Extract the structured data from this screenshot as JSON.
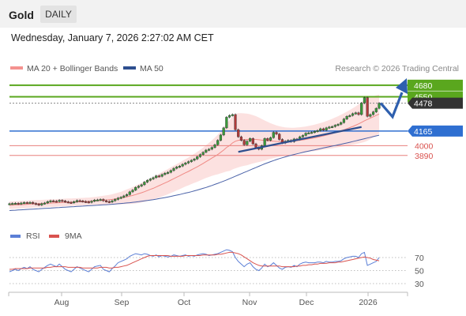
{
  "header": {
    "symbol": "Gold",
    "timeframe": "DAILY"
  },
  "timestamp": "Wednesday, January 7, 2026 2:27:02 AM CET",
  "legend": {
    "ma20": {
      "label": "MA 20 + Bollinger Bands",
      "color": "#f4928f"
    },
    "ma50": {
      "label": "MA 50",
      "color": "#2e4f8f"
    }
  },
  "copyright": "Research © 2026 Trading Central",
  "colors": {
    "resistance": "#5aa71e",
    "pivot": "#2f6fd1",
    "support": "#d9534f",
    "price_bg": "#333333",
    "candle_up": "#3a9a3a",
    "candle_down": "#b03a3a"
  },
  "chart_data": {
    "type": "candlestick",
    "x_ticks": [
      "Aug",
      "Sep",
      "Oct",
      "Nov",
      "Dec",
      "2026"
    ],
    "ylim": [
      3150,
      4750
    ],
    "levels": [
      {
        "value": 4680,
        "label": "4680",
        "kind": "resistance"
      },
      {
        "value": 4550,
        "label": "4550",
        "kind": "resistance"
      },
      {
        "value": 4478,
        "label": "4478",
        "kind": "price"
      },
      {
        "value": 4165,
        "label": "4165",
        "kind": "pivot"
      },
      {
        "value": 4000,
        "label": "4000",
        "kind": "support"
      },
      {
        "value": 3890,
        "label": "3890",
        "kind": "support"
      }
    ],
    "close": [
      3347,
      3350,
      3352,
      3345,
      3355,
      3360,
      3358,
      3362,
      3350,
      3343,
      3332,
      3348,
      3355,
      3370,
      3380,
      3376,
      3372,
      3385,
      3378,
      3368,
      3362,
      3358,
      3370,
      3382,
      3378,
      3372,
      3368,
      3362,
      3375,
      3388,
      3390,
      3395,
      3380,
      3372,
      3365,
      3380,
      3395,
      3410,
      3420,
      3435,
      3450,
      3480,
      3500,
      3530,
      3545,
      3560,
      3590,
      3610,
      3625,
      3640,
      3660,
      3655,
      3675,
      3690,
      3700,
      3720,
      3745,
      3760,
      3770,
      3790,
      3805,
      3820,
      3835,
      3850,
      3875,
      3900,
      3925,
      3950,
      3960,
      3980,
      4010,
      4060,
      4120,
      4200,
      4320,
      4340,
      4350,
      4180,
      4100,
      4060,
      4010,
      4050,
      4080,
      4020,
      3980,
      3960,
      4000,
      4080,
      4060,
      4090,
      4150,
      4130,
      4070,
      4030,
      4050,
      4060,
      4045,
      4075,
      4070,
      4100,
      4115,
      4140,
      4145,
      4150,
      4160,
      4170,
      4190,
      4175,
      4200,
      4210,
      4215,
      4230,
      4240,
      4260,
      4300,
      4330,
      4340,
      4360,
      4370,
      4350,
      4480,
      4540,
      4330,
      4350,
      4380,
      4420,
      4478
    ],
    "ma20": [
      3330,
      3331,
      3333,
      3334,
      3336,
      3338,
      3340,
      3342,
      3344,
      3346,
      3347,
      3348,
      3350,
      3352,
      3354,
      3355,
      3357,
      3359,
      3360,
      3362,
      3363,
      3364,
      3366,
      3367,
      3369,
      3370,
      3372,
      3374,
      3376,
      3378,
      3380,
      3383,
      3386,
      3389,
      3392,
      3395,
      3400,
      3405,
      3410,
      3418,
      3425,
      3432,
      3440,
      3450,
      3460,
      3470,
      3482,
      3495,
      3508,
      3520,
      3535,
      3550,
      3565,
      3580,
      3595,
      3612,
      3628,
      3645,
      3660,
      3678,
      3695,
      3710,
      3728,
      3745,
      3762,
      3780,
      3800,
      3820,
      3840,
      3860,
      3880,
      3900,
      3925,
      3950,
      3980,
      4000,
      4030,
      4050,
      4060,
      4065,
      4068,
      4070,
      4072,
      4072,
      4070,
      4066,
      4062,
      4058,
      4055,
      4052,
      4050,
      4048,
      4047,
      4046,
      4046,
      4047,
      4049,
      4052,
      4056,
      4060,
      4065,
      4070,
      4076,
      4082,
      4088,
      4095,
      4102,
      4110,
      4118,
      4127,
      4136,
      4146,
      4156,
      4167,
      4178,
      4190,
      4203,
      4216,
      4230,
      4245,
      4262,
      4280,
      4295,
      4310,
      4325,
      4340,
      4355
    ],
    "bb_width": [
      40,
      42,
      42,
      42,
      42,
      42,
      42,
      42,
      42,
      42,
      42,
      42,
      42,
      42,
      42,
      42,
      42,
      42,
      42,
      42,
      42,
      42,
      42,
      42,
      42,
      42,
      42,
      42,
      42,
      44,
      46,
      48,
      50,
      52,
      54,
      58,
      62,
      66,
      70,
      76,
      82,
      88,
      94,
      100,
      106,
      110,
      114,
      118,
      122,
      126,
      130,
      134,
      138,
      140,
      142,
      144,
      146,
      148,
      150,
      152,
      154,
      156,
      160,
      164,
      168,
      172,
      178,
      184,
      192,
      200,
      210,
      222,
      236,
      252,
      270,
      285,
      298,
      305,
      305,
      300,
      295,
      290,
      282,
      272,
      262,
      250,
      238,
      225,
      212,
      200,
      190,
      180,
      172,
      165,
      160,
      156,
      153,
      150,
      148,
      147,
      146,
      146,
      146,
      147,
      148,
      150,
      152,
      155,
      158,
      162,
      166,
      170,
      175,
      180,
      186,
      192,
      198,
      205,
      212,
      220,
      230,
      238,
      240,
      236,
      230,
      225,
      220
    ],
    "ma50": [
      3270,
      3272,
      3274,
      3276,
      3278,
      3280,
      3282,
      3284,
      3286,
      3288,
      3290,
      3292,
      3294,
      3296,
      3298,
      3300,
      3302,
      3304,
      3306,
      3308,
      3310,
      3312,
      3314,
      3316,
      3318,
      3320,
      3322,
      3324,
      3326,
      3328,
      3330,
      3332,
      3334,
      3336,
      3338,
      3340,
      3343,
      3346,
      3349,
      3352,
      3355,
      3358,
      3362,
      3366,
      3370,
      3374,
      3378,
      3383,
      3388,
      3393,
      3398,
      3404,
      3410,
      3416,
      3422,
      3429,
      3436,
      3443,
      3450,
      3458,
      3466,
      3474,
      3482,
      3491,
      3500,
      3510,
      3520,
      3530,
      3541,
      3552,
      3564,
      3576,
      3588,
      3601,
      3614,
      3628,
      3642,
      3656,
      3670,
      3684,
      3698,
      3712,
      3726,
      3740,
      3754,
      3768,
      3782,
      3795,
      3808,
      3820,
      3832,
      3843,
      3854,
      3864,
      3874,
      3883,
      3892,
      3900,
      3908,
      3916,
      3924,
      3932,
      3939,
      3946,
      3953,
      3960,
      3967,
      3974,
      3981,
      3988,
      3995,
      4002,
      4009,
      4016,
      4023,
      4030,
      4038,
      4046,
      4054,
      4062,
      4070,
      4078,
      4086,
      4094,
      4102,
      4110,
      4118
    ],
    "rsi": [
      48,
      50,
      52,
      50,
      53,
      55,
      53,
      56,
      52,
      50,
      48,
      52,
      55,
      58,
      60,
      58,
      56,
      60,
      56,
      52,
      50,
      48,
      52,
      56,
      54,
      52,
      50,
      48,
      52,
      56,
      57,
      58,
      52,
      50,
      48,
      53,
      57,
      62,
      64,
      66,
      68,
      72,
      74,
      76,
      75,
      74,
      76,
      75,
      73,
      72,
      74,
      71,
      73,
      72,
      71,
      72,
      74,
      73,
      72,
      73,
      74,
      72,
      73,
      72,
      74,
      75,
      76,
      75,
      73,
      74,
      75,
      76,
      78,
      80,
      82,
      81,
      79,
      70,
      64,
      60,
      56,
      60,
      62,
      56,
      52,
      50,
      54,
      60,
      56,
      58,
      62,
      58,
      54,
      52,
      55,
      56,
      55,
      58,
      56,
      60,
      62,
      63,
      62,
      62,
      62,
      63,
      63,
      62,
      64,
      63,
      63,
      64,
      64,
      65,
      68,
      70,
      71,
      72,
      72,
      70,
      76,
      78,
      58,
      60,
      62,
      64,
      70
    ],
    "rsi_ma": [
      52,
      52,
      53,
      53,
      53,
      53,
      53,
      54,
      54,
      54,
      54,
      54,
      54,
      55,
      55,
      56,
      56,
      56,
      56,
      56,
      55,
      55,
      55,
      55,
      55,
      54,
      54,
      54,
      54,
      54,
      54,
      55,
      55,
      55,
      54,
      54,
      55,
      55,
      56,
      57,
      58,
      60,
      62,
      64,
      66,
      68,
      70,
      72,
      73,
      73,
      73,
      73,
      73,
      73,
      73,
      72,
      72,
      72,
      72,
      72,
      73,
      73,
      73,
      73,
      73,
      73,
      74,
      74,
      74,
      74,
      74,
      75,
      75,
      76,
      77,
      78,
      78,
      77,
      76,
      74,
      71,
      68,
      65,
      62,
      60,
      58,
      57,
      57,
      57,
      57,
      57,
      57,
      57,
      56,
      56,
      56,
      56,
      56,
      57,
      57,
      58,
      58,
      59,
      59,
      60,
      60,
      61,
      61,
      61,
      62,
      62,
      62,
      63,
      63,
      64,
      65,
      66,
      67,
      68,
      69,
      70,
      71,
      70,
      69,
      67,
      66,
      65
    ],
    "rsi_ticks": [
      70,
      50,
      30
    ],
    "rsi_legend": [
      {
        "name": "RSI",
        "color": "#5b7fd6"
      },
      {
        "name": "9MA",
        "color": "#d9534f"
      }
    ]
  }
}
